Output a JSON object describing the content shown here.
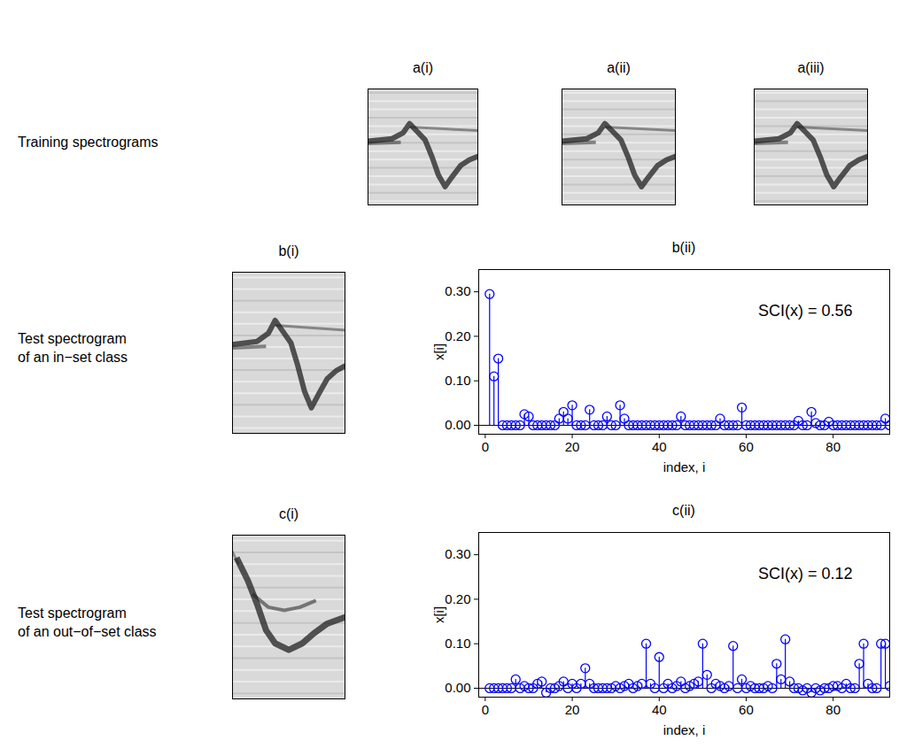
{
  "figure": {
    "rows": [
      {
        "label_lines": [
          "Training spectrograms"
        ],
        "image_panels": [
          "a(i)",
          "a(ii)",
          "a(iii)"
        ]
      },
      {
        "label_lines": [
          "Test spectrogram",
          "of an in−set class"
        ],
        "image_panels": [
          "b(i)"
        ]
      },
      {
        "label_lines": [
          "Test spectrogram",
          "of an out−of−set class"
        ],
        "image_panels": [
          "c(i)"
        ]
      }
    ]
  },
  "chart_data": [
    {
      "type": "stem",
      "title": "b(ii)",
      "x_label": "index, i",
      "y_label": "x[i]",
      "annotation": "SCI(x) = 0.56",
      "color": "#0000ff",
      "marker": "circle",
      "xlim": [
        -1.5,
        93
      ],
      "ylim": [
        -0.02,
        0.35
      ],
      "xticks": [
        0,
        20,
        40,
        60,
        80
      ],
      "yticks": [
        0,
        0.1,
        0.2,
        0.3
      ],
      "x": [
        1,
        2,
        3,
        4,
        5,
        6,
        7,
        8,
        9,
        10,
        11,
        12,
        13,
        14,
        15,
        16,
        17,
        18,
        19,
        20,
        21,
        22,
        23,
        24,
        25,
        26,
        27,
        28,
        29,
        30,
        31,
        32,
        33,
        34,
        35,
        36,
        37,
        38,
        39,
        40,
        41,
        42,
        43,
        44,
        45,
        46,
        47,
        48,
        49,
        50,
        51,
        52,
        53,
        54,
        55,
        56,
        57,
        58,
        59,
        60,
        61,
        62,
        63,
        64,
        65,
        66,
        67,
        68,
        69,
        70,
        71,
        72,
        73,
        74,
        75,
        76,
        77,
        78,
        79,
        80,
        81,
        82,
        83,
        84,
        85,
        86,
        87,
        88,
        89,
        90,
        91,
        92,
        93
      ],
      "values": [
        0.295,
        0.11,
        0.15,
        0,
        0,
        0,
        0,
        0,
        0.025,
        0.02,
        0,
        0,
        0,
        0,
        0,
        0,
        0.015,
        0.03,
        0.015,
        0.045,
        0,
        0,
        0,
        0.035,
        0,
        0,
        0,
        0.02,
        0,
        0,
        0.045,
        0.015,
        0,
        0,
        0,
        0,
        0,
        0,
        0,
        0,
        0,
        0,
        0,
        0,
        0.02,
        0,
        0,
        0,
        0,
        0,
        0,
        0,
        0,
        0.015,
        0,
        0,
        0,
        0,
        0.04,
        0,
        0,
        0,
        0,
        0,
        0,
        0,
        0,
        0,
        0,
        0,
        0,
        0.01,
        0,
        0,
        0.03,
        0.005,
        0,
        0,
        0.008,
        0,
        0,
        0,
        0,
        0,
        0,
        0,
        0,
        0,
        0,
        0,
        0,
        0.015,
        0
      ]
    },
    {
      "type": "stem",
      "title": "c(ii)",
      "x_label": "index, i",
      "y_label": "x[i]",
      "annotation": "SCI(x) = 0.12",
      "color": "#0000ff",
      "marker": "circle",
      "xlim": [
        -1.5,
        93
      ],
      "ylim": [
        -0.02,
        0.35
      ],
      "xticks": [
        0,
        20,
        40,
        60,
        80
      ],
      "yticks": [
        0,
        0.1,
        0.2,
        0.3
      ],
      "x": [
        1,
        2,
        3,
        4,
        5,
        6,
        7,
        8,
        9,
        10,
        11,
        12,
        13,
        14,
        15,
        16,
        17,
        18,
        19,
        20,
        21,
        22,
        23,
        24,
        25,
        26,
        27,
        28,
        29,
        30,
        31,
        32,
        33,
        34,
        35,
        36,
        37,
        38,
        39,
        40,
        41,
        42,
        43,
        44,
        45,
        46,
        47,
        48,
        49,
        50,
        51,
        52,
        53,
        54,
        55,
        56,
        57,
        58,
        59,
        60,
        61,
        62,
        63,
        64,
        65,
        66,
        67,
        68,
        69,
        70,
        71,
        72,
        73,
        74,
        75,
        76,
        77,
        78,
        79,
        80,
        81,
        82,
        83,
        84,
        85,
        86,
        87,
        88,
        89,
        90,
        91,
        92,
        93
      ],
      "values": [
        0,
        0,
        0,
        0,
        0,
        0,
        0.02,
        0,
        0.005,
        0,
        0,
        0.01,
        0.015,
        -0.01,
        0,
        0,
        0.005,
        0.015,
        0,
        0.01,
        0,
        0.01,
        0.045,
        0.01,
        0,
        0,
        0,
        0,
        0,
        0.005,
        0,
        0.005,
        0.01,
        0,
        0.005,
        0.01,
        0.1,
        0.01,
        0,
        0.07,
        0,
        0.01,
        0,
        0.005,
        0.015,
        0,
        0.005,
        0.01,
        0.015,
        0.1,
        0.03,
        0,
        0.01,
        0.005,
        0,
        0.005,
        0.095,
        0,
        0.02,
        0,
        0.005,
        0,
        0,
        0,
        0.005,
        0,
        0.055,
        0.02,
        0.11,
        0.015,
        0,
        0,
        -0.005,
        0,
        -0.01,
        0,
        -0.005,
        0,
        0,
        0.005,
        0.005,
        0,
        0.01,
        0,
        0,
        0.055,
        0.1,
        0.01,
        0,
        0,
        0.1,
        0.1,
        0.005
      ]
    }
  ]
}
